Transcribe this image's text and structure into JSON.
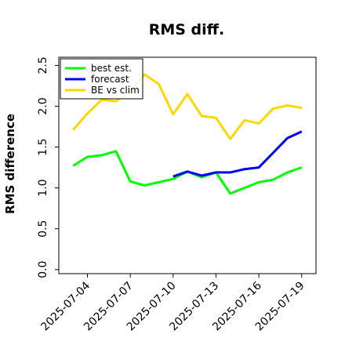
{
  "chart_data": {
    "type": "line",
    "title": "RMS diff.",
    "xlabel": "",
    "ylabel": "RMS difference",
    "x": [
      "2025-07-03",
      "2025-07-04",
      "2025-07-05",
      "2025-07-06",
      "2025-07-07",
      "2025-07-08",
      "2025-07-09",
      "2025-07-10",
      "2025-07-11",
      "2025-07-12",
      "2025-07-13",
      "2025-07-14",
      "2025-07-15",
      "2025-07-16",
      "2025-07-17",
      "2025-07-18",
      "2025-07-19"
    ],
    "xticks": [
      "2025-07-04",
      "2025-07-07",
      "2025-07-10",
      "2025-07-13",
      "2025-07-16",
      "2025-07-19"
    ],
    "highlighted_tick": "2025-07-10",
    "highlight_color": "#228B22",
    "yticks": [
      "0.0",
      "0.5",
      "1.0",
      "1.5",
      "2.0",
      "2.5"
    ],
    "ylim": [
      -0.05,
      2.6
    ],
    "xlim": [
      "2025-07-02",
      "2025-07-20"
    ],
    "grid": false,
    "legend_position": "upper-left",
    "series": [
      {
        "name": "best est.",
        "color": "#00ff00",
        "values": [
          1.27,
          1.38,
          1.4,
          1.45,
          1.08,
          1.03,
          1.07,
          1.11,
          1.2,
          1.13,
          1.19,
          0.93,
          1.0,
          1.07,
          1.1,
          1.19,
          1.25
        ]
      },
      {
        "name": "forecast",
        "color": "#0000ff",
        "values": [
          null,
          null,
          null,
          null,
          null,
          null,
          null,
          1.14,
          1.2,
          1.15,
          1.19,
          1.19,
          1.23,
          1.25,
          1.43,
          1.61,
          1.69
        ]
      },
      {
        "name": "BE vs clim",
        "color": "#ffd700",
        "values": [
          1.71,
          1.91,
          2.08,
          2.06,
          2.19,
          2.39,
          2.27,
          1.9,
          2.15,
          1.88,
          1.86,
          1.6,
          1.83,
          1.79,
          1.97,
          2.01,
          1.98
        ]
      }
    ]
  }
}
